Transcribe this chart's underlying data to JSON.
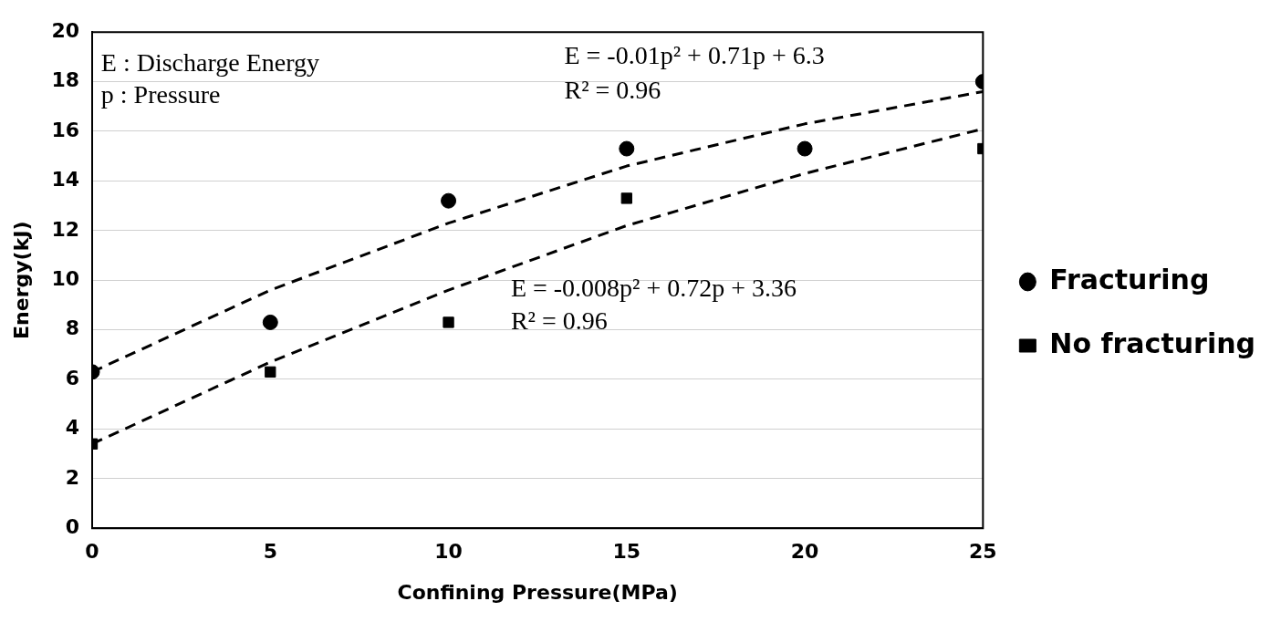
{
  "chart_data": {
    "type": "scatter",
    "xlabel": "Confining Pressure(MPa)",
    "ylabel": "Energy(kJ)",
    "xlim": [
      0,
      25
    ],
    "xticks": [
      0,
      5,
      10,
      15,
      20,
      25
    ],
    "ylim": [
      0,
      20
    ],
    "yticks": [
      0,
      2,
      4,
      6,
      8,
      10,
      12,
      14,
      16,
      18,
      20
    ],
    "grid": "y",
    "legend": "right",
    "series": [
      {
        "name": "Fracturing",
        "type": "scatter",
        "marker": "circle",
        "color": "#000000",
        "x": [
          0,
          5,
          10,
          15,
          20,
          25
        ],
        "values": [
          6.3,
          8.3,
          13.2,
          15.3,
          15.3,
          18.0
        ]
      },
      {
        "name": "No fracturing",
        "type": "scatter",
        "marker": "square",
        "color": "#000000",
        "x": [
          0,
          5,
          10,
          15,
          20,
          25
        ],
        "values": [
          3.4,
          6.3,
          8.3,
          13.3,
          15.3,
          15.3
        ]
      },
      {
        "type": "line",
        "marker": "none",
        "line_style": "dashed",
        "color": "#000000",
        "x": [
          0,
          5,
          10,
          15,
          20,
          25
        ],
        "values": [
          6.3,
          9.6,
          12.3,
          14.6,
          16.3,
          17.6
        ]
      },
      {
        "type": "line",
        "marker": "none",
        "line_style": "dashed",
        "color": "#000000",
        "x": [
          0,
          5,
          10,
          15,
          20,
          25
        ],
        "values": [
          3.4,
          6.7,
          9.6,
          12.2,
          14.3,
          16.1
        ]
      }
    ],
    "annotations": [
      "E : Discharge Energy",
      "p : Pressure",
      "E = -0.01p² + 0.71p + 6.3",
      "R² = 0.96",
      "E = -0.008p² + 0.72p + 3.36",
      "R² = 0.96"
    ]
  }
}
